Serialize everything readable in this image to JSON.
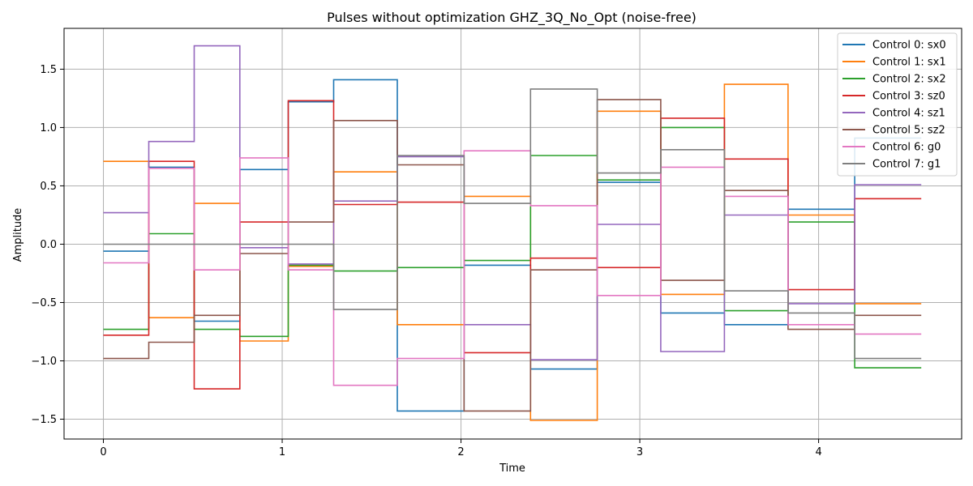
{
  "chart_data": {
    "type": "line",
    "step": "post",
    "title": "Pulses without optimization GHZ_3Q_No_Opt (noise-free)",
    "xlabel": "Time",
    "ylabel": "Amplitude",
    "xlim": [
      -0.22,
      4.8
    ],
    "ylim": [
      -1.67,
      1.85
    ],
    "xticks": [
      0,
      1,
      2,
      3,
      4
    ],
    "xtick_labels": [
      "0",
      "1",
      "2",
      "3",
      "4"
    ],
    "yticks": [
      -1.5,
      -1.0,
      -0.5,
      0.0,
      0.5,
      1.0,
      1.5
    ],
    "ytick_labels": [
      "−1.5",
      "−1.0",
      "−0.5",
      "0.0",
      "0.5",
      "1.0",
      "1.5"
    ],
    "grid": true,
    "legend_position": "top-right",
    "x": [
      0,
      0.254,
      0.508,
      0.763,
      1.034,
      1.288,
      1.644,
      2.017,
      2.389,
      2.762,
      3.117,
      3.473,
      3.829,
      4.202,
      4.574
    ],
    "series": [
      {
        "name": "Control 0: sx0",
        "color": "#1f77b4",
        "values": [
          -0.06,
          0.66,
          -0.66,
          0.64,
          1.22,
          1.41,
          -1.43,
          -0.18,
          -1.07,
          0.53,
          -0.59,
          -0.69,
          0.3,
          0.91,
          0.91
        ]
      },
      {
        "name": "Control 1: sx1",
        "color": "#ff7f0e",
        "values": [
          0.71,
          -0.63,
          0.35,
          -0.83,
          -0.19,
          0.62,
          -0.69,
          0.41,
          -1.51,
          1.14,
          -0.43,
          1.37,
          0.25,
          -0.51,
          -0.51
        ]
      },
      {
        "name": "Control 2: sx2",
        "color": "#2ca02c",
        "values": [
          -0.73,
          0.09,
          -0.73,
          -0.79,
          -0.18,
          -0.23,
          -0.2,
          -0.14,
          0.76,
          0.55,
          1.0,
          -0.57,
          0.19,
          -1.06,
          -1.06
        ]
      },
      {
        "name": "Control 3: sz0",
        "color": "#d62728",
        "values": [
          -0.78,
          0.71,
          -1.24,
          0.19,
          1.23,
          0.34,
          0.36,
          -0.93,
          -0.12,
          -0.2,
          1.08,
          0.73,
          -0.39,
          0.39,
          0.39
        ]
      },
      {
        "name": "Control 4: sz1",
        "color": "#9467bd",
        "values": [
          0.27,
          0.88,
          1.7,
          -0.03,
          -0.17,
          0.37,
          0.75,
          -0.69,
          -0.99,
          0.17,
          -0.92,
          0.25,
          -0.51,
          0.51,
          0.51
        ]
      },
      {
        "name": "Control 5: sz2",
        "color": "#8c564b",
        "values": [
          -0.98,
          -0.84,
          -0.61,
          -0.08,
          0.19,
          1.06,
          0.68,
          -1.43,
          -0.22,
          1.24,
          -0.31,
          0.46,
          -0.73,
          -0.61,
          -0.61
        ]
      },
      {
        "name": "Control 6: g0",
        "color": "#e377c2",
        "values": [
          -0.16,
          0.65,
          -0.22,
          0.74,
          -0.22,
          -1.21,
          -0.98,
          0.8,
          0.33,
          -0.44,
          0.66,
          0.41,
          -0.69,
          -0.77,
          -0.77
        ]
      },
      {
        "name": "Control 7: g1",
        "color": "#7f7f7f",
        "values": [
          0.0,
          0.0,
          0.0,
          0.0,
          0.0,
          -0.56,
          0.76,
          0.35,
          1.33,
          0.61,
          0.81,
          -0.4,
          -0.59,
          -0.98,
          -0.98
        ]
      }
    ]
  }
}
